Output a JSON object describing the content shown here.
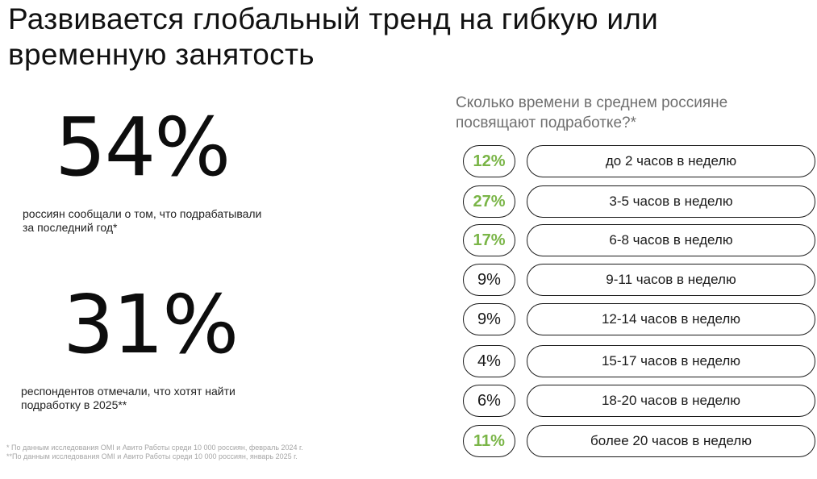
{
  "title": "Развивается глобальный тренд на гибкую или временную занятость",
  "stat1": {
    "value": "54%",
    "caption_line1": "россиян сообщали о том, что подрабатывали",
    "caption_line2": "за последний год*"
  },
  "stat2": {
    "value": "31%",
    "caption_line1": "респондентов отмечали, что хотят найти",
    "caption_line2": "подработку в 2025**"
  },
  "footnotes": [
    "* По данным исследования OMI и Авито Работы среди 10 000 россиян, февраль 2024 г.",
    "**По данным исследования OMI и Авито Работы среди 10 000 россиян, январь 2025 г."
  ],
  "question_line1": "Сколько времени в среднем россияне",
  "question_line2": "посвящают подработке?*",
  "highlight_color": "#7ab547",
  "rows": [
    {
      "pct": "12%",
      "label": "до 2 часов в неделю",
      "highlight": true
    },
    {
      "pct": "27%",
      "label": "3-5 часов в неделю",
      "highlight": true
    },
    {
      "pct": "17%",
      "label": "6-8 часов в неделю",
      "highlight": true
    },
    {
      "pct": "9%",
      "label": "9-11 часов в неделю",
      "highlight": false
    },
    {
      "pct": "9%",
      "label": "12-14 часов в неделю",
      "highlight": false
    },
    {
      "pct": "4%",
      "label": "15-17 часов в неделю",
      "highlight": false
    },
    {
      "pct": "6%",
      "label": "18-20 часов в неделю",
      "highlight": false
    },
    {
      "pct": "11%",
      "label": "более 20 часов в неделю",
      "highlight": true
    }
  ]
}
